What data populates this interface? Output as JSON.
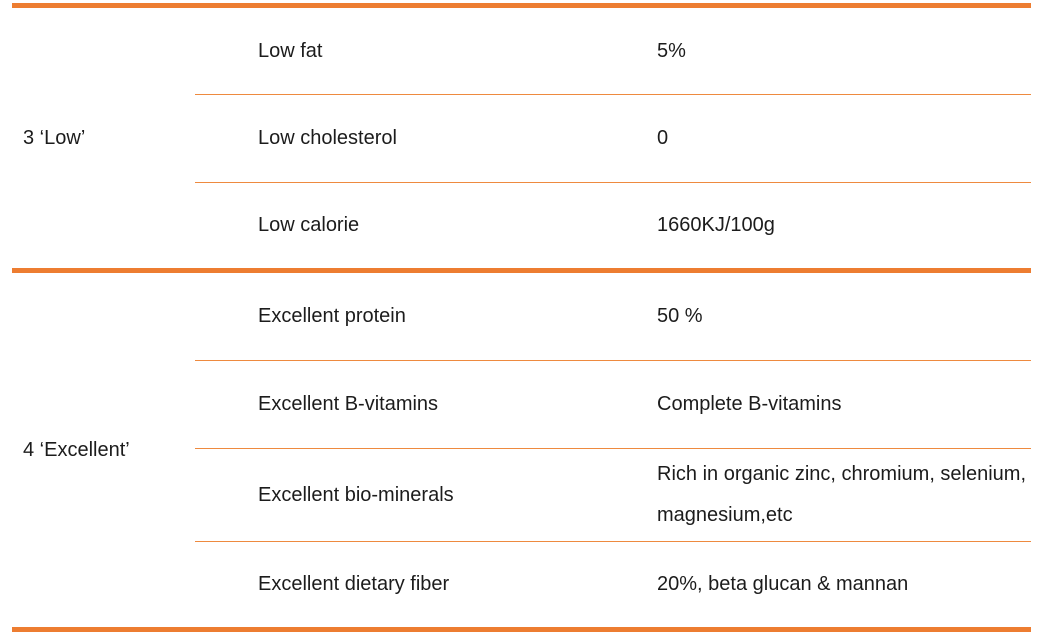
{
  "colors": {
    "accent_border": "#ED7D31",
    "thin_rule": "#EE8A3F",
    "text": "#1c1c1c",
    "background": "#ffffff"
  },
  "table": {
    "groups": [
      {
        "label": "3 ‘Low’",
        "rows": [
          {
            "attribute": "Low fat",
            "value": "5%"
          },
          {
            "attribute": "Low cholesterol",
            "value": "0"
          },
          {
            "attribute": "Low calorie",
            "value": "1660KJ/100g"
          }
        ]
      },
      {
        "label": "4 ‘Excellent’",
        "rows": [
          {
            "attribute": "Excellent protein",
            "value": "50 %"
          },
          {
            "attribute": "Excellent B-vitamins",
            "value": "Complete B-vitamins"
          },
          {
            "attribute": "Excellent bio-minerals",
            "value": "Rich in organic zinc, chromium, selenium, magnesium,etc"
          },
          {
            "attribute": "Excellent dietary fiber",
            "value": "20%, beta glucan & mannan"
          }
        ]
      }
    ]
  }
}
